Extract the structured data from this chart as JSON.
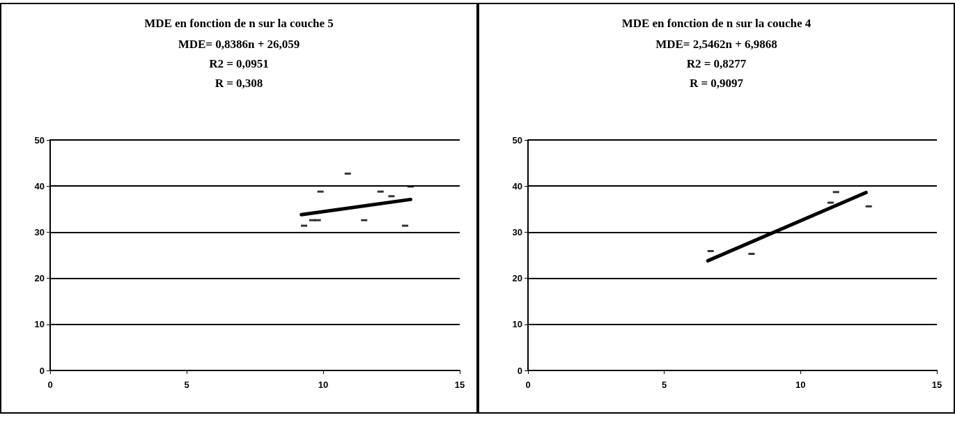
{
  "chart_data": [
    {
      "type": "scatter",
      "title": "MDE en fonction de n sur la couche 5",
      "annotations": [
        "MDE= 0,8386n + 26,059",
        "R2 = 0,0951",
        "R = 0,308"
      ],
      "xlim": [
        0,
        15
      ],
      "xticks": [
        0,
        5,
        10,
        15
      ],
      "ylim": [
        0,
        50
      ],
      "yticks": [
        0,
        10,
        20,
        30,
        40,
        50
      ],
      "grid": "y",
      "series": [
        {
          "color": "#000000",
          "marker": "square",
          "x": [
            10.9,
            9.9,
            12.1,
            13.2,
            12.5,
            9.3,
            9.6,
            9.8,
            11.5,
            13.0
          ],
          "values": [
            42.7,
            38.8,
            38.8,
            39.9,
            37.8,
            31.4,
            32.6,
            32.6,
            32.6,
            31.4
          ]
        },
        {
          "type": "line",
          "color": "#000000",
          "marker": "none",
          "x": [
            9.2,
            13.2
          ],
          "values": [
            33.8,
            37.1
          ]
        }
      ]
    },
    {
      "type": "scatter",
      "title": "MDE en fonction de n sur la couche 4",
      "annotations": [
        "MDE= 2,5462n + 6,9868",
        "R2 = 0,8277",
        "R = 0,9097"
      ],
      "xlim": [
        0,
        15
      ],
      "xticks": [
        0,
        5,
        10,
        15
      ],
      "ylim": [
        0,
        50
      ],
      "yticks": [
        0,
        10,
        20,
        30,
        40,
        50
      ],
      "grid": "y",
      "series": [
        {
          "color": "#000000",
          "marker": "square",
          "x": [
            6.7,
            8.2,
            11.3,
            11.1,
            12.5
          ],
          "values": [
            25.9,
            25.3,
            38.7,
            36.4,
            35.6
          ]
        },
        {
          "type": "line",
          "color": "#000000",
          "marker": "none",
          "x": [
            6.6,
            12.4
          ],
          "values": [
            23.8,
            38.6
          ]
        }
      ]
    }
  ]
}
